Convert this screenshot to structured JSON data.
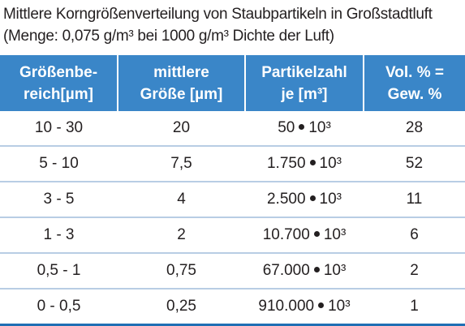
{
  "caption": {
    "line1": "Mittlere Korngrößenverteilung von Staubpartikeln in Großstadtluft",
    "line2": "(Menge: 0,075 g/m³ bei  1000 g/m³ Dichte der Luft)"
  },
  "table": {
    "headers": [
      {
        "line1": "Größenbe-",
        "line2": "reich[µm]"
      },
      {
        "line1": "mittlere",
        "line2": "Größe [µm]"
      },
      {
        "line1": "Partikelzahl",
        "line2": "je [m³]"
      },
      {
        "line1": "Vol. % =",
        "line2": "Gew. %"
      }
    ],
    "rows": [
      {
        "range": "10 - 30",
        "size": "20",
        "count_base": "50",
        "count_exp": "10³",
        "percent": "28"
      },
      {
        "range": "5 - 10",
        "size": "7,5",
        "count_base": "1.750",
        "count_exp": "10³",
        "percent": "52"
      },
      {
        "range": "3 - 5",
        "size": "4",
        "count_base": "2.500",
        "count_exp": "10³",
        "percent": "11"
      },
      {
        "range": "1 - 3",
        "size": "2",
        "count_base": "10.700",
        "count_exp": "10³",
        "percent": "6"
      },
      {
        "range": "0,5 - 1",
        "size": "0,75",
        "count_base": "67.000",
        "count_exp": "10³",
        "percent": "2"
      },
      {
        "range": "0 - 0,5",
        "size": "0,25",
        "count_base": "910.000",
        "count_exp": "10³",
        "percent": "1"
      }
    ]
  },
  "colors": {
    "header_bg": "#3a86c8",
    "header_text": "#ffffff",
    "row_divider": "#b8cde4",
    "bottom_rule": "#1f6fb4"
  }
}
